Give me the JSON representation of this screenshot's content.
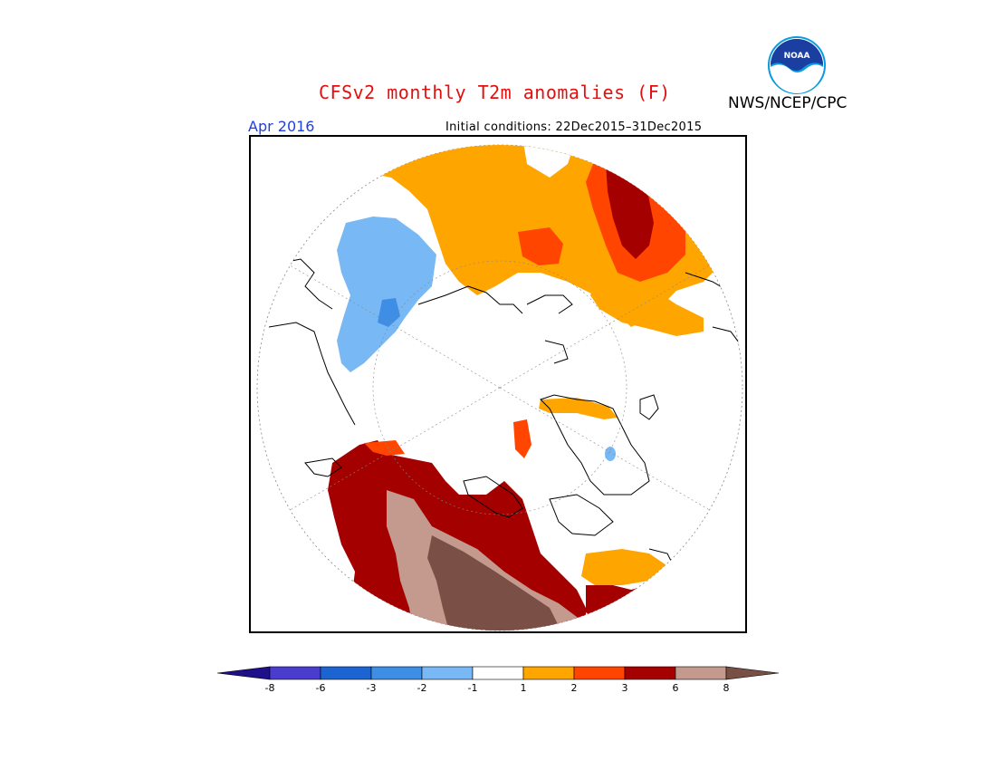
{
  "title": "CFSv2 monthly T2m anomalies (F)",
  "agency": "NWS/NCEP/CPC",
  "period": "Apr 2016",
  "initial_conditions": "Initial conditions: 22Dec2015–31Dec2015",
  "logo": {
    "text": "NOAA",
    "colors": {
      "outer": "#0a9ae0",
      "inner": "#1a3fa0"
    }
  },
  "colorbar": {
    "tick_labels": [
      "-8",
      "-6",
      "-3",
      "-2",
      "-1",
      "1",
      "2",
      "3",
      "6",
      "8"
    ],
    "colors": [
      "#1f0f8a",
      "#4a3ccc",
      "#1c64d2",
      "#3f8ee6",
      "#78b8f4",
      "#ffffff",
      "#ffa500",
      "#ff4500",
      "#a50000",
      "#c49a8f",
      "#7a4f45"
    ]
  },
  "map_colors": {
    "light_blue": "#78b8f4",
    "blue": "#3f8ee6",
    "orange": "#ffa500",
    "red_orange": "#ff4500",
    "dark_red": "#a50000",
    "tan": "#c49a8f",
    "brown": "#7a4f45"
  }
}
